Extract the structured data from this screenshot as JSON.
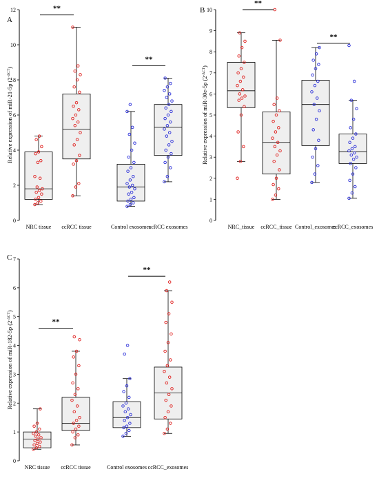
{
  "chart_data": [
    {
      "panel": "A",
      "type": "box",
      "ylabel_main": "Relative expression of miR-21-5p (2",
      "ylabel_sup": "-ΔCT",
      "ylabel_close": ")",
      "ylim": [
        0,
        12
      ],
      "yticks": [
        0,
        2,
        4,
        6,
        8,
        10,
        12
      ],
      "categories": [
        "NRC tissue",
        "ccRCC tissue",
        "Control exosomes",
        "ccRCC exosomes"
      ],
      "point_colors": [
        "red",
        "red",
        "blue",
        "blue"
      ],
      "boxes": [
        {
          "whisker_low": 0.9,
          "q1": 1.2,
          "median": 1.8,
          "q3": 3.9,
          "whisker_high": 4.8
        },
        {
          "whisker_low": 1.4,
          "q1": 3.5,
          "median": 5.2,
          "q3": 7.2,
          "whisker_high": 11.0
        },
        {
          "whisker_low": 0.8,
          "q1": 1.1,
          "median": 1.9,
          "q3": 3.2,
          "whisker_high": 6.2
        },
        {
          "whisker_low": 2.2,
          "q1": 3.7,
          "median": 5.3,
          "q3": 6.6,
          "whisker_high": 8.1
        }
      ],
      "points": [
        [
          0.9,
          1.0,
          1.1,
          1.2,
          1.3,
          1.5,
          1.6,
          1.7,
          1.8,
          1.9,
          2.4,
          2.5,
          3.3,
          3.4,
          3.8,
          3.9,
          4.2,
          4.6,
          4.8
        ],
        [
          1.4,
          1.9,
          2.1,
          3.2,
          3.4,
          3.7,
          4.3,
          4.6,
          5.0,
          5.4,
          5.6,
          5.8,
          6.0,
          6.3,
          6.5,
          6.7,
          7.3,
          7.6,
          8.0,
          8.3,
          8.5,
          8.8,
          11.0
        ],
        [
          0.8,
          0.9,
          1.0,
          1.1,
          1.2,
          1.3,
          1.5,
          1.6,
          1.8,
          1.9,
          2.0,
          2.1,
          2.3,
          2.5,
          2.8,
          3.0,
          3.3,
          3.6,
          4.0,
          4.4,
          4.9,
          5.3,
          6.2,
          6.6
        ],
        [
          2.2,
          2.5,
          3.0,
          3.3,
          3.6,
          3.8,
          4.0,
          4.3,
          4.5,
          4.8,
          5.0,
          5.2,
          5.4,
          5.6,
          5.8,
          6.0,
          6.2,
          6.4,
          6.6,
          6.8,
          7.0,
          7.2,
          7.4,
          7.6,
          7.8,
          8.1
        ]
      ],
      "significance": [
        {
          "from": 0,
          "to": 1,
          "label": "**",
          "y": 11.7
        },
        {
          "from": 2,
          "to": 3,
          "label": "**",
          "y": 8.8
        }
      ]
    },
    {
      "panel": "B",
      "type": "box",
      "ylabel_main": "Relative expression of miR-30e-5p (2",
      "ylabel_sup": "-ΔCT",
      "ylabel_close": ")",
      "ylim": [
        0,
        10
      ],
      "yticks": [
        0,
        1,
        2,
        3,
        4,
        5,
        6,
        7,
        8,
        9,
        10
      ],
      "categories": [
        "NRC_tissue",
        "ccRCC_tissue",
        "Control_exosomes",
        "ccRCC_exosomes"
      ],
      "point_colors": [
        "red",
        "red",
        "blue",
        "blue"
      ],
      "boxes": [
        {
          "whisker_low": 2.8,
          "q1": 5.35,
          "median": 6.15,
          "q3": 7.5,
          "whisker_high": 8.9
        },
        {
          "whisker_low": 1.0,
          "q1": 2.2,
          "median": 3.7,
          "q3": 5.15,
          "whisker_high": 8.55
        },
        {
          "whisker_low": 1.8,
          "q1": 3.55,
          "median": 5.5,
          "q3": 6.65,
          "whisker_high": 8.2
        },
        {
          "whisker_low": 1.05,
          "q1": 2.7,
          "median": 3.25,
          "q3": 4.1,
          "whisker_high": 5.7
        }
      ],
      "points": [
        [
          2.0,
          2.8,
          3.5,
          4.2,
          5.0,
          5.4,
          5.7,
          5.8,
          5.9,
          6.0,
          6.2,
          6.4,
          6.6,
          6.8,
          7.0,
          7.2,
          7.5,
          7.8,
          8.2,
          8.5,
          8.9
        ],
        [
          1.0,
          1.2,
          1.5,
          1.7,
          2.0,
          2.4,
          2.8,
          3.1,
          3.3,
          3.5,
          3.7,
          3.9,
          4.2,
          4.4,
          4.7,
          5.0,
          5.2,
          5.5,
          5.8,
          8.55,
          10.0
        ],
        [
          1.8,
          2.2,
          2.6,
          3.0,
          3.4,
          3.8,
          4.3,
          4.8,
          5.2,
          5.5,
          5.8,
          6.1,
          6.4,
          6.6,
          6.9,
          7.2,
          7.4,
          7.6,
          7.9,
          8.2
        ],
        [
          1.05,
          1.3,
          1.6,
          1.9,
          2.2,
          2.5,
          2.7,
          2.9,
          3.0,
          3.1,
          3.2,
          3.3,
          3.4,
          3.5,
          3.7,
          3.9,
          4.1,
          4.4,
          4.8,
          5.3,
          5.7,
          6.6,
          8.3
        ]
      ],
      "significance": [
        {
          "from": 0,
          "to": 1,
          "label": "**",
          "y": 10.0
        },
        {
          "from": 2,
          "to": 3,
          "label": "**",
          "y": 8.4
        }
      ]
    },
    {
      "panel": "C",
      "type": "box",
      "ylabel_main": "Relative expression of miR-182-5p (2",
      "ylabel_sup": "-ΔCT",
      "ylabel_close": ")",
      "ylim": [
        0,
        7
      ],
      "yticks": [
        0,
        1,
        2,
        3,
        4,
        5,
        6,
        7
      ],
      "categories": [
        "NRC tissue",
        "ccRCC tissue",
        "Control exosomes",
        "ccRCC_exosomes"
      ],
      "point_colors": [
        "red",
        "red",
        "blue",
        "red"
      ],
      "boxes": [
        {
          "whisker_low": 0.4,
          "q1": 0.45,
          "median": 0.75,
          "q3": 1.0,
          "whisker_high": 1.8
        },
        {
          "whisker_low": 0.55,
          "q1": 1.05,
          "median": 1.3,
          "q3": 2.2,
          "whisker_high": 3.8
        },
        {
          "whisker_low": 0.85,
          "q1": 1.15,
          "median": 1.5,
          "q3": 2.05,
          "whisker_high": 2.85
        },
        {
          "whisker_low": 0.95,
          "q1": 1.45,
          "median": 2.35,
          "q3": 3.25,
          "whisker_high": 5.9
        }
      ],
      "points": [
        [
          0.4,
          0.45,
          0.5,
          0.55,
          0.6,
          0.65,
          0.7,
          0.75,
          0.8,
          0.85,
          0.9,
          0.95,
          1.0,
          1.1,
          1.2,
          1.3,
          1.8
        ],
        [
          0.55,
          0.8,
          0.9,
          1.0,
          1.1,
          1.2,
          1.3,
          1.4,
          1.5,
          1.7,
          1.9,
          2.1,
          2.3,
          2.5,
          2.7,
          3.0,
          3.3,
          3.6,
          3.8,
          4.2,
          4.3
        ],
        [
          0.85,
          0.95,
          1.05,
          1.15,
          1.2,
          1.3,
          1.4,
          1.5,
          1.6,
          1.7,
          1.8,
          1.9,
          2.0,
          2.2,
          2.4,
          2.6,
          2.85,
          3.7,
          4.0
        ],
        [
          0.95,
          1.1,
          1.3,
          1.5,
          1.7,
          1.9,
          2.1,
          2.3,
          2.5,
          2.7,
          2.9,
          3.1,
          3.3,
          3.5,
          3.8,
          4.1,
          4.4,
          4.8,
          5.1,
          5.5,
          5.9,
          6.2
        ]
      ],
      "significance": [
        {
          "from": 0,
          "to": 1,
          "label": "**",
          "y": 4.6
        },
        {
          "from": 2,
          "to": 3,
          "label": "**",
          "y": 6.4
        }
      ]
    }
  ]
}
